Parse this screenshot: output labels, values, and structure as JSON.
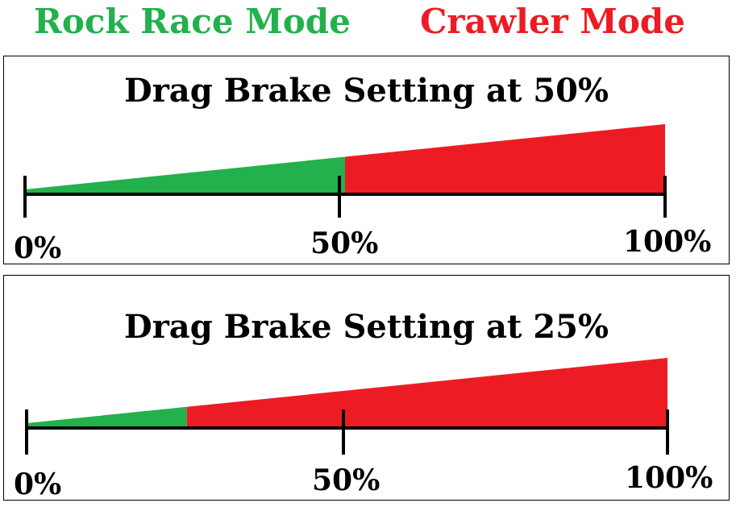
{
  "legend": {
    "rock_race_label": "Rock Race Mode",
    "rock_race_color": "#22b14c",
    "crawler_label": "Crawler Mode",
    "crawler_color": "#ed1c24"
  },
  "panels": [
    {
      "title": "Drag Brake Setting at 50%",
      "setting_fraction": 0.5,
      "ticks": [
        "0%",
        "50%",
        "100%"
      ]
    },
    {
      "title": "Drag Brake Setting at 25%",
      "setting_fraction": 0.25,
      "ticks": [
        "0%",
        "50%",
        "100%"
      ]
    }
  ]
}
